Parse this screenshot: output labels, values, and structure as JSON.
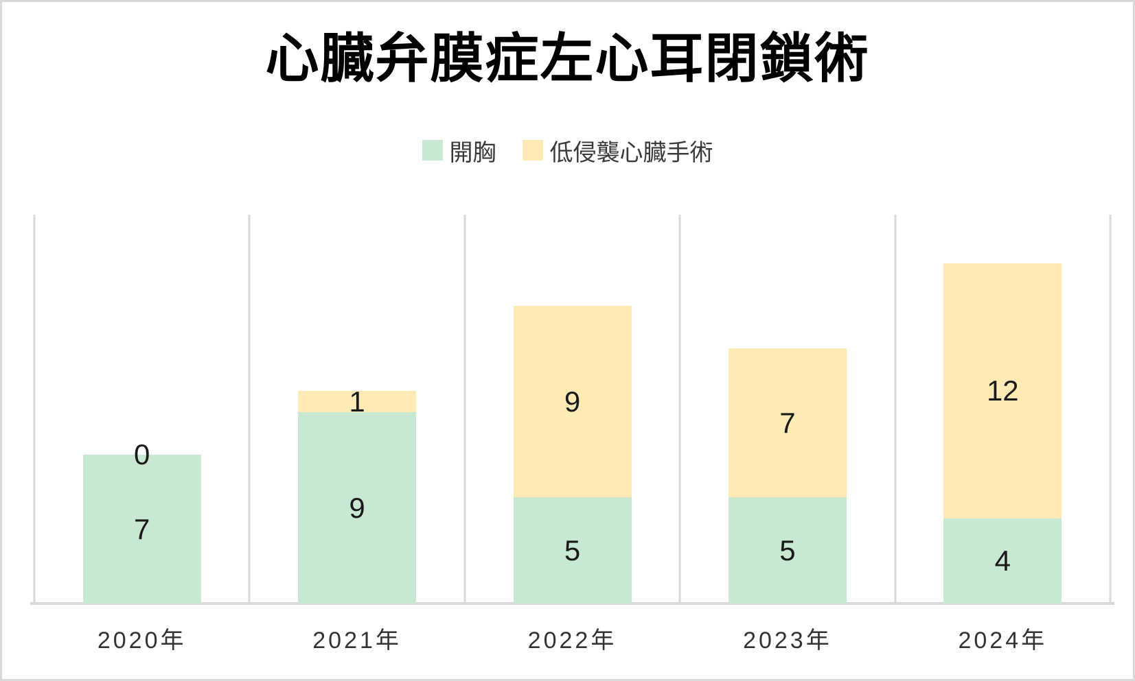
{
  "window": {
    "background_color": "#ffffff",
    "frame_color": "#d9d9d9"
  },
  "chart_data": {
    "type": "bar",
    "stacked": true,
    "title": "心臓弁膜症左心耳閉鎖術",
    "categories": [
      "2020年",
      "2021年",
      "2022年",
      "2023年",
      "2024年"
    ],
    "series": [
      {
        "name": "開胸",
        "color": "#c9e8d2",
        "values": [
          7,
          9,
          5,
          5,
          4
        ]
      },
      {
        "name": "低侵襲心臓手術",
        "color": "#fdeab5",
        "values": [
          0,
          1,
          9,
          7,
          12
        ]
      }
    ],
    "totals": [
      7,
      10,
      14,
      12,
      16
    ],
    "value_labels": true,
    "value_label_color": "#1a1a1a",
    "legend_position": "top-center",
    "grid": "vertical category boundaries only",
    "gridline_color": "#d9d9d9",
    "axis_line_color": "#d9d9d9",
    "xlabel": "",
    "ylabel": "",
    "ylim": [
      0,
      18.3
    ],
    "y_axis_labels_visible": false
  }
}
